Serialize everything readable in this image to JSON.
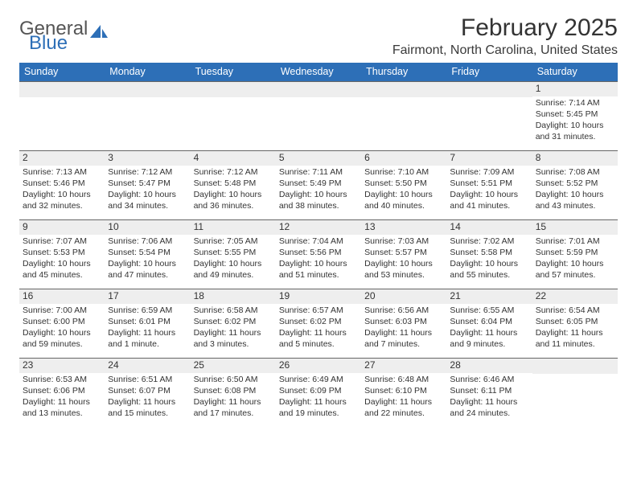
{
  "brand": {
    "word1": "General",
    "word2": "Blue",
    "sail_color": "#2d6fb7"
  },
  "title": "February 2025",
  "location": "Fairmont, North Carolina, United States",
  "colors": {
    "header_bg": "#2d6fb7",
    "header_text": "#ffffff",
    "daybar_bg": "#eeeeee",
    "daybar_border": "#666666",
    "text": "#333333",
    "page_bg": "#ffffff"
  },
  "typography": {
    "title_fontsize": 30,
    "location_fontsize": 16,
    "dow_fontsize": 12.5,
    "cell_fontsize": 10.5,
    "daynum_fontsize": 12
  },
  "layout": {
    "columns": 7,
    "rows": 5,
    "first_weekday_index": 6
  },
  "weekdays": [
    "Sunday",
    "Monday",
    "Tuesday",
    "Wednesday",
    "Thursday",
    "Friday",
    "Saturday"
  ],
  "days": [
    {
      "n": 1,
      "sunrise": "7:14 AM",
      "sunset": "5:45 PM",
      "daylight": "10 hours and 31 minutes."
    },
    {
      "n": 2,
      "sunrise": "7:13 AM",
      "sunset": "5:46 PM",
      "daylight": "10 hours and 32 minutes."
    },
    {
      "n": 3,
      "sunrise": "7:12 AM",
      "sunset": "5:47 PM",
      "daylight": "10 hours and 34 minutes."
    },
    {
      "n": 4,
      "sunrise": "7:12 AM",
      "sunset": "5:48 PM",
      "daylight": "10 hours and 36 minutes."
    },
    {
      "n": 5,
      "sunrise": "7:11 AM",
      "sunset": "5:49 PM",
      "daylight": "10 hours and 38 minutes."
    },
    {
      "n": 6,
      "sunrise": "7:10 AM",
      "sunset": "5:50 PM",
      "daylight": "10 hours and 40 minutes."
    },
    {
      "n": 7,
      "sunrise": "7:09 AM",
      "sunset": "5:51 PM",
      "daylight": "10 hours and 41 minutes."
    },
    {
      "n": 8,
      "sunrise": "7:08 AM",
      "sunset": "5:52 PM",
      "daylight": "10 hours and 43 minutes."
    },
    {
      "n": 9,
      "sunrise": "7:07 AM",
      "sunset": "5:53 PM",
      "daylight": "10 hours and 45 minutes."
    },
    {
      "n": 10,
      "sunrise": "7:06 AM",
      "sunset": "5:54 PM",
      "daylight": "10 hours and 47 minutes."
    },
    {
      "n": 11,
      "sunrise": "7:05 AM",
      "sunset": "5:55 PM",
      "daylight": "10 hours and 49 minutes."
    },
    {
      "n": 12,
      "sunrise": "7:04 AM",
      "sunset": "5:56 PM",
      "daylight": "10 hours and 51 minutes."
    },
    {
      "n": 13,
      "sunrise": "7:03 AM",
      "sunset": "5:57 PM",
      "daylight": "10 hours and 53 minutes."
    },
    {
      "n": 14,
      "sunrise": "7:02 AM",
      "sunset": "5:58 PM",
      "daylight": "10 hours and 55 minutes."
    },
    {
      "n": 15,
      "sunrise": "7:01 AM",
      "sunset": "5:59 PM",
      "daylight": "10 hours and 57 minutes."
    },
    {
      "n": 16,
      "sunrise": "7:00 AM",
      "sunset": "6:00 PM",
      "daylight": "10 hours and 59 minutes."
    },
    {
      "n": 17,
      "sunrise": "6:59 AM",
      "sunset": "6:01 PM",
      "daylight": "11 hours and 1 minute."
    },
    {
      "n": 18,
      "sunrise": "6:58 AM",
      "sunset": "6:02 PM",
      "daylight": "11 hours and 3 minutes."
    },
    {
      "n": 19,
      "sunrise": "6:57 AM",
      "sunset": "6:02 PM",
      "daylight": "11 hours and 5 minutes."
    },
    {
      "n": 20,
      "sunrise": "6:56 AM",
      "sunset": "6:03 PM",
      "daylight": "11 hours and 7 minutes."
    },
    {
      "n": 21,
      "sunrise": "6:55 AM",
      "sunset": "6:04 PM",
      "daylight": "11 hours and 9 minutes."
    },
    {
      "n": 22,
      "sunrise": "6:54 AM",
      "sunset": "6:05 PM",
      "daylight": "11 hours and 11 minutes."
    },
    {
      "n": 23,
      "sunrise": "6:53 AM",
      "sunset": "6:06 PM",
      "daylight": "11 hours and 13 minutes."
    },
    {
      "n": 24,
      "sunrise": "6:51 AM",
      "sunset": "6:07 PM",
      "daylight": "11 hours and 15 minutes."
    },
    {
      "n": 25,
      "sunrise": "6:50 AM",
      "sunset": "6:08 PM",
      "daylight": "11 hours and 17 minutes."
    },
    {
      "n": 26,
      "sunrise": "6:49 AM",
      "sunset": "6:09 PM",
      "daylight": "11 hours and 19 minutes."
    },
    {
      "n": 27,
      "sunrise": "6:48 AM",
      "sunset": "6:10 PM",
      "daylight": "11 hours and 22 minutes."
    },
    {
      "n": 28,
      "sunrise": "6:46 AM",
      "sunset": "6:11 PM",
      "daylight": "11 hours and 24 minutes."
    }
  ],
  "labels": {
    "sunrise": "Sunrise:",
    "sunset": "Sunset:",
    "daylight": "Daylight:"
  }
}
